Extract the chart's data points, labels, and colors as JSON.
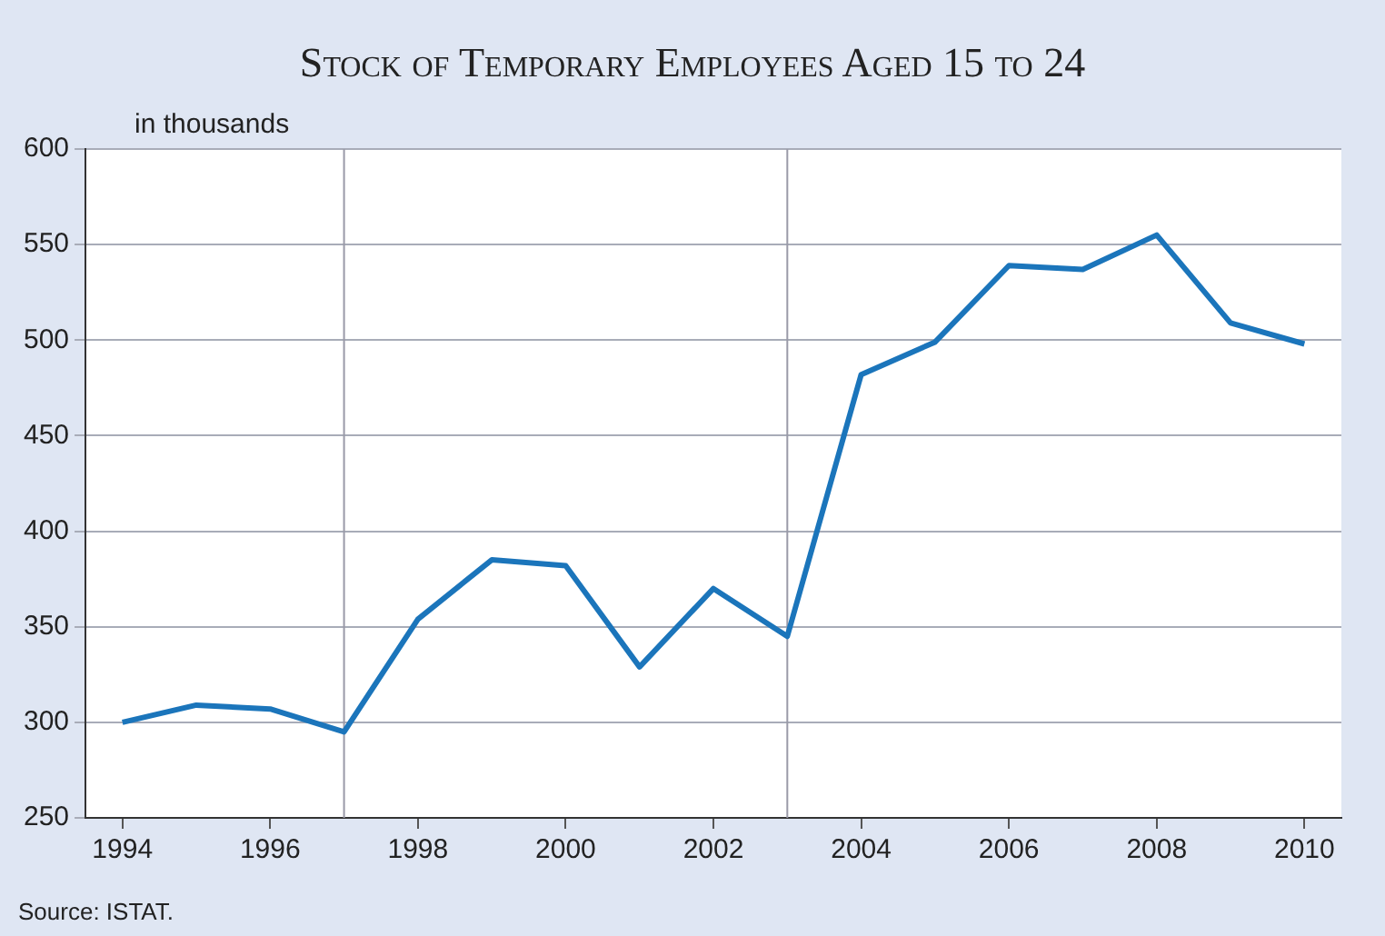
{
  "chart_data": {
    "type": "line",
    "title": "Stock of Temporary Employees Aged 15 to 24",
    "ylabel": "in thousands",
    "annotations": [
      "Source: ISTAT."
    ],
    "x": [
      1994,
      1995,
      1996,
      1997,
      1998,
      1999,
      2000,
      2001,
      2002,
      2003,
      2004,
      2005,
      2006,
      2007,
      2008,
      2009,
      2010
    ],
    "series": [
      {
        "color": "#1b75bb",
        "values": [
          300,
          309,
          307,
          295,
          354,
          385,
          382,
          329,
          370,
          345,
          482,
          499,
          539,
          537,
          555,
          509,
          498
        ]
      }
    ],
    "xlim": [
      1993.5,
      2010.5
    ],
    "xticks": [
      1994,
      1996,
      1998,
      2000,
      2002,
      2004,
      2006,
      2008,
      2010
    ],
    "ylim": [
      250,
      600
    ],
    "yticks": [
      250,
      300,
      350,
      400,
      450,
      500,
      550,
      600
    ],
    "ref_lines": [
      {
        "axis": "x",
        "value": 1997,
        "color": "#9a9aa8"
      },
      {
        "axis": "x",
        "value": 2003,
        "color": "#9a9aa8"
      }
    ],
    "grid": "y",
    "legend": false,
    "marker": "none",
    "line_style": "solid"
  }
}
